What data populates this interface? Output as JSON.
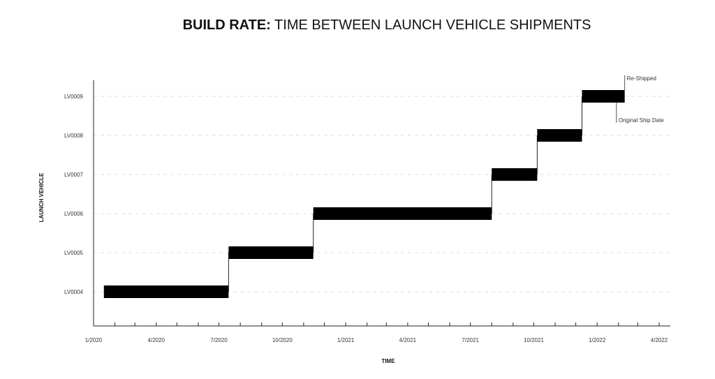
{
  "chart_data": {
    "type": "gantt",
    "title_bold": "BUILD RATE:",
    "title_rest": " TIME BETWEEN LAUNCH VEHICLE SHIPMENTS",
    "xlabel": "TIME",
    "ylabel": "LAUNCH VEHICLE",
    "x_start": "2020-01-01",
    "x_end": "2022-04-01",
    "x_tick_labels": [
      {
        "date": "2020-01-01",
        "label": "1/2020"
      },
      {
        "date": "2020-04-01",
        "label": "4/2020"
      },
      {
        "date": "2020-07-01",
        "label": "7/2020"
      },
      {
        "date": "2020-10-01",
        "label": "10/2020"
      },
      {
        "date": "2021-01-01",
        "label": "1/2021"
      },
      {
        "date": "2021-04-01",
        "label": "4/2021"
      },
      {
        "date": "2021-07-01",
        "label": "7/2021"
      },
      {
        "date": "2021-10-01",
        "label": "10/2021"
      },
      {
        "date": "2022-01-01",
        "label": "1/2022"
      },
      {
        "date": "2022-04-01",
        "label": "4/2022"
      }
    ],
    "categories": [
      "LV0004",
      "LV0005",
      "LV0006",
      "LV0007",
      "LV0008",
      "LV0009"
    ],
    "bars": [
      {
        "vehicle": "LV0004",
        "start": "2020-01-16",
        "end": "2020-07-15"
      },
      {
        "vehicle": "LV0005",
        "start": "2020-07-15",
        "end": "2020-11-15"
      },
      {
        "vehicle": "LV0006",
        "start": "2020-11-15",
        "end": "2021-08-01"
      },
      {
        "vehicle": "LV0007",
        "start": "2021-08-01",
        "end": "2021-10-06"
      },
      {
        "vehicle": "LV0008",
        "start": "2021-10-06",
        "end": "2021-12-10"
      },
      {
        "vehicle": "LV0009",
        "start": "2021-12-10",
        "end": "2022-02-10"
      }
    ],
    "annotations": [
      {
        "text": "Re-Shipped",
        "date": "2022-02-10",
        "vehicle": "LV0009",
        "side": "above"
      },
      {
        "text": "Original Ship Date",
        "date": "2022-01-29",
        "vehicle": "LV0009",
        "side": "below"
      }
    ],
    "grid": true,
    "colors": {
      "bar": "#000000",
      "grid": "#dddddd",
      "axis": "#222222",
      "text": "#333333"
    }
  }
}
